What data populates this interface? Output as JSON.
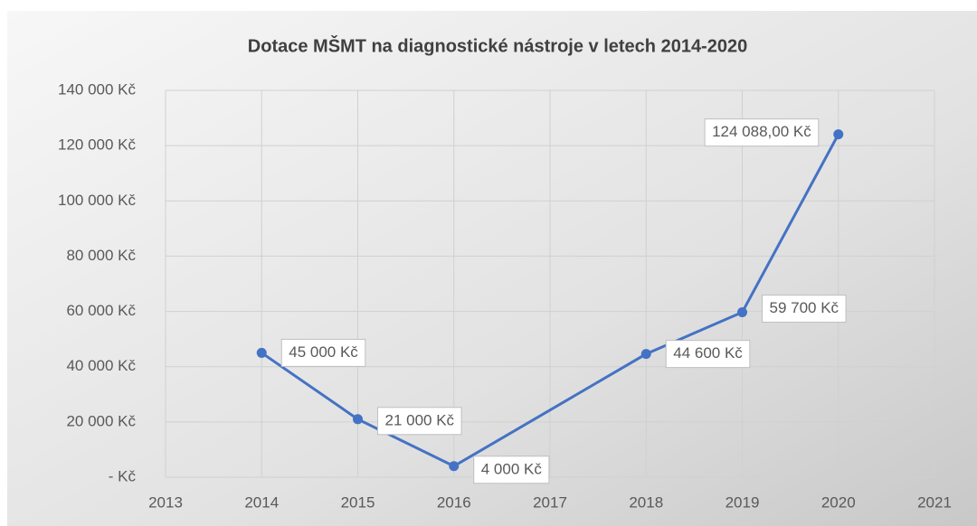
{
  "chart_data": {
    "type": "line",
    "title": "Dotace MŠMT na diagnostické nástroje v letech 2014-2020",
    "x": [
      2014,
      2015,
      2016,
      2018,
      2019,
      2020
    ],
    "values": [
      45000,
      21000,
      4000,
      44600,
      59700,
      124088
    ],
    "value_labels": [
      "45 000 Kč",
      "21 000 Kč",
      "4 000 Kč",
      "44 600 Kč",
      "59 700 Kč",
      "124 088,00 Kč"
    ],
    "color": "#4472c4",
    "xlim": [
      2013,
      2021
    ],
    "xticks": [
      2013,
      2014,
      2015,
      2016,
      2017,
      2018,
      2019,
      2020,
      2021
    ],
    "ylim": [
      0,
      140000
    ],
    "yticks": [
      {
        "value": 0,
        "label": "-   Kč"
      },
      {
        "value": 20000,
        "label": "20 000 Kč"
      },
      {
        "value": 40000,
        "label": "40 000 Kč"
      },
      {
        "value": 60000,
        "label": "60 000 Kč"
      },
      {
        "value": 80000,
        "label": "80 000 Kč"
      },
      {
        "value": 100000,
        "label": "100 000 Kč"
      },
      {
        "value": 120000,
        "label": "120 000 Kč"
      },
      {
        "value": 140000,
        "label": "140 000 Kč"
      }
    ],
    "grid": true
  }
}
